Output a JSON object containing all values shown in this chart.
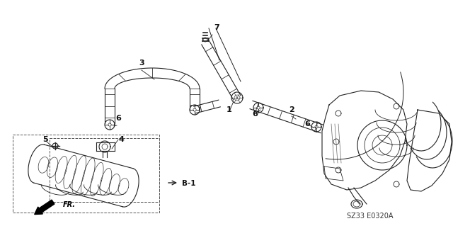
{
  "background_color": "#ffffff",
  "line_color": "#222222",
  "diagram_code": "SZ33 E0320A",
  "figsize": [
    6.4,
    3.19
  ],
  "dpi": 100
}
